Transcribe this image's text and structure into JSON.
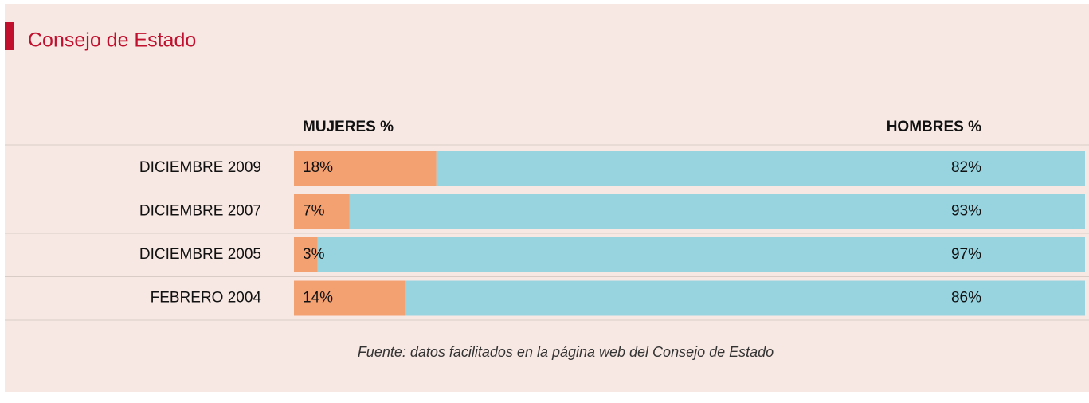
{
  "chart_data": {
    "type": "bar",
    "orientation": "horizontal",
    "stacked": true,
    "title": "Consejo de Estado",
    "categories": [
      "DICIEMBRE 2009",
      "DICIEMBRE 2007",
      "DICIEMBRE 2005",
      "FEBRERO 2004"
    ],
    "series": [
      {
        "name": "MUJERES %",
        "color": "#f4a172",
        "values": [
          18,
          7,
          3,
          14
        ],
        "value_labels": [
          "18%",
          "7%",
          "3%",
          "14%"
        ]
      },
      {
        "name": "HOMBRES %",
        "color": "#98d4e0",
        "values": [
          82,
          93,
          97,
          86
        ],
        "value_labels": [
          "82%",
          "93%",
          "97%",
          "86%"
        ]
      }
    ],
    "xlim": [
      0,
      100
    ],
    "source": "Fuente: datos facilitados en la página web del Consejo de Estado"
  }
}
